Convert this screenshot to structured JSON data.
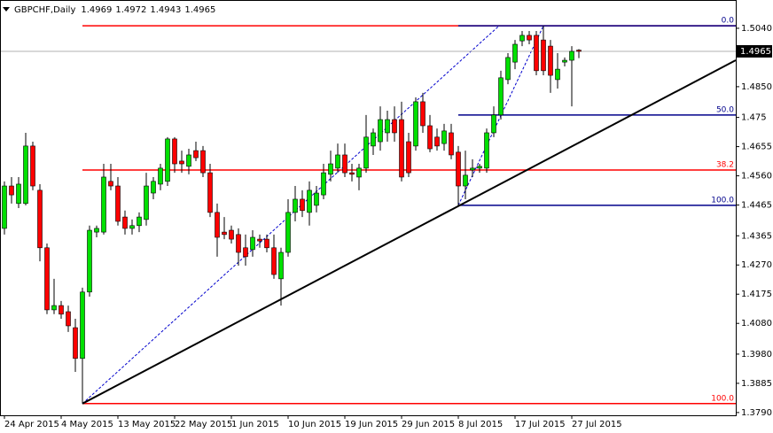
{
  "chart_data": {
    "type": "candlestick",
    "symbol": "GBPCHF,Daily",
    "categories": [
      "24 Apr 2015",
      null,
      null,
      null,
      null,
      null,
      null,
      null,
      "4 May 2015",
      null,
      null,
      null,
      null,
      null,
      null,
      null,
      "13 May 2015",
      null,
      null,
      null,
      null,
      null,
      null,
      null,
      "22 May 2015",
      null,
      null,
      null,
      null,
      null,
      null,
      null,
      "1 Jun 2015",
      null,
      null,
      null,
      null,
      null,
      null,
      null,
      "10 Jun 2015",
      null,
      null,
      null,
      null,
      null,
      null,
      null,
      "19 Jun 2015",
      null,
      null,
      null,
      null,
      null,
      null,
      null,
      "29 Jun 2015",
      null,
      null,
      null,
      null,
      null,
      null,
      null,
      "8 Jul 2015",
      null,
      null,
      null,
      null,
      null,
      null,
      null,
      "17 Jul 2015",
      null,
      null,
      null,
      null,
      null,
      null,
      null,
      "27 Jul 2015",
      null
    ],
    "open": [
      1.4389,
      1.4527,
      1.447,
      1.447,
      1.4657,
      1.4513,
      1.4326,
      1.4124,
      1.4138,
      1.4118,
      1.4066,
      1.3966,
      1.4182,
      1.4377,
      1.4377,
      1.4542,
      1.4527,
      1.4426,
      1.4389,
      1.4398,
      1.4418,
      1.4504,
      1.4533,
      1.4542,
      1.468,
      1.4608,
      1.4591,
      1.4642,
      1.4642,
      1.457,
      1.4441,
      1.4377,
      1.4383,
      1.4369,
      1.4326,
      1.432,
      1.4354,
      1.4354,
      1.4326,
      1.4225,
      1.4311,
      1.4441,
      1.4484,
      1.4441,
      1.4464,
      1.4498,
      1.4565,
      1.4585,
      1.4628,
      1.457,
      1.4556,
      1.4585,
      1.4657,
      1.4671,
      1.47,
      1.4743,
      1.4743,
      1.4671,
      1.4657,
      1.4801,
      1.4723,
      1.4686,
      1.4665,
      1.47,
      1.4637,
      1.4527,
      1.4579,
      1.4585,
      1.4585,
      1.47,
      1.4758,
      1.4873,
      1.493,
      1.4999,
      1.5017,
      1.5017,
      1.5002,
      1.4982,
      1.4873,
      1.493,
      1.4936,
      1.4969
    ],
    "high": [
      1.4542,
      1.4556,
      1.4556,
      1.47,
      1.4671,
      1.4533,
      1.434,
      1.4225,
      1.4153,
      1.4138,
      1.4095,
      1.4196,
      1.4398,
      1.4398,
      1.4599,
      1.4599,
      1.4556,
      1.4447,
      1.4418,
      1.4441,
      1.457,
      1.4556,
      1.4599,
      1.4686,
      1.4686,
      1.4642,
      1.4648,
      1.4671,
      1.4657,
      1.4599,
      1.447,
      1.4426,
      1.4398,
      1.4389,
      1.4369,
      1.4383,
      1.4369,
      1.4369,
      1.4369,
      1.4326,
      1.4484,
      1.4527,
      1.4513,
      1.4542,
      1.4527,
      1.4599,
      1.4642,
      1.4665,
      1.4665,
      1.4599,
      1.4599,
      1.4758,
      1.4714,
      1.4786,
      1.4772,
      1.4786,
      1.4801,
      1.47,
      1.4815,
      1.483,
      1.4758,
      1.4714,
      1.4729,
      1.4729,
      1.4657,
      1.4642,
      1.4614,
      1.4599,
      1.4714,
      1.4786,
      1.4902,
      1.4959,
      1.5002,
      1.5031,
      1.5031,
      1.5031,
      1.5048,
      1.5002,
      1.4959,
      1.4945,
      1.4982,
      1.4972
    ],
    "low": [
      1.4369,
      1.447,
      1.4455,
      1.4464,
      1.4513,
      1.4282,
      1.411,
      1.411,
      1.4095,
      1.4052,
      1.3922,
      1.3819,
      1.4167,
      1.436,
      1.4369,
      1.4513,
      1.4398,
      1.4369,
      1.4369,
      1.4377,
      1.4398,
      1.4484,
      1.4513,
      1.4527,
      1.457,
      1.457,
      1.4565,
      1.4608,
      1.4556,
      1.4426,
      1.4297,
      1.4354,
      1.434,
      1.4268,
      1.4268,
      1.4297,
      1.4326,
      1.4311,
      1.4225,
      1.4138,
      1.4297,
      1.4412,
      1.4426,
      1.4398,
      1.4441,
      1.4484,
      1.4542,
      1.457,
      1.4556,
      1.4542,
      1.4513,
      1.457,
      1.4628,
      1.4642,
      1.4671,
      1.4671,
      1.4542,
      1.4556,
      1.4642,
      1.47,
      1.4637,
      1.4642,
      1.4642,
      1.4614,
      1.4464,
      1.4484,
      1.4556,
      1.457,
      1.457,
      1.4686,
      1.4743,
      1.4858,
      1.4907,
      1.4982,
      1.4988,
      1.4887,
      1.4887,
      1.483,
      1.4844,
      1.4916,
      1.4786,
      1.4943
    ],
    "close": [
      1.4527,
      1.4498,
      1.4533,
      1.4657,
      1.4527,
      1.4326,
      1.4124,
      1.4138,
      1.411,
      1.4072,
      1.3966,
      1.4182,
      1.4383,
      1.4389,
      1.4556,
      1.4527,
      1.4412,
      1.4389,
      1.4398,
      1.4426,
      1.4527,
      1.4542,
      1.4585,
      1.468,
      1.4599,
      1.4599,
      1.4628,
      1.4619,
      1.457,
      1.4441,
      1.436,
      1.4369,
      1.4354,
      1.4311,
      1.4297,
      1.436,
      1.4348,
      1.4326,
      1.4239,
      1.4311,
      1.4441,
      1.4484,
      1.4447,
      1.4513,
      1.4504,
      1.457,
      1.4599,
      1.4628,
      1.457,
      1.4565,
      1.4585,
      1.4686,
      1.47,
      1.4743,
      1.4743,
      1.47,
      1.4556,
      1.457,
      1.4801,
      1.4723,
      1.4648,
      1.4657,
      1.4706,
      1.4628,
      1.4527,
      1.4562,
      1.4585,
      1.4591,
      1.47,
      1.4758,
      1.4879,
      1.4945,
      1.4988,
      1.5017,
      1.5002,
      1.4902,
      1.4902,
      1.4887,
      1.4907,
      1.4936,
      1.4965,
      1.4965
    ],
    "up_color": "#00e000",
    "down_color": "#ff0000",
    "ylim": [
      1.3781,
      1.5132
    ],
    "yticks": [
      {
        "value": 1.504,
        "label": "1.5040"
      },
      {
        "value": 1.485,
        "label": "1.4850"
      },
      1.475,
      {
        "value": 1.4655,
        "label": "1.4655"
      },
      {
        "value": 1.456,
        "label": "1.4560"
      },
      1.4465,
      1.4365,
      {
        "value": 1.427,
        "label": "1.4270"
      },
      1.4175,
      {
        "value": 1.408,
        "label": "1.4080"
      },
      {
        "value": 1.398,
        "label": "1.3980"
      },
      1.3885,
      {
        "value": 1.379,
        "label": "1.3790"
      }
    ],
    "fibonacci": [
      {
        "color": "#ff0000",
        "levels": [
          {
            "price": 1.5048
          },
          {
            "label": "38.2",
            "price": 1.4579
          },
          {
            "label": "100.0",
            "price": 1.3819
          }
        ]
      },
      {
        "color": "#00008b",
        "levels": [
          {
            "label": "0.0",
            "price": 1.5048
          },
          {
            "label": "50.0",
            "price": 1.4758
          },
          {
            "label": "100.0",
            "price": 1.4464
          }
        ]
      }
    ],
    "trendline": {
      "color": "#000000",
      "start": 1.3819,
      "end": 1.4936
    }
  }
}
